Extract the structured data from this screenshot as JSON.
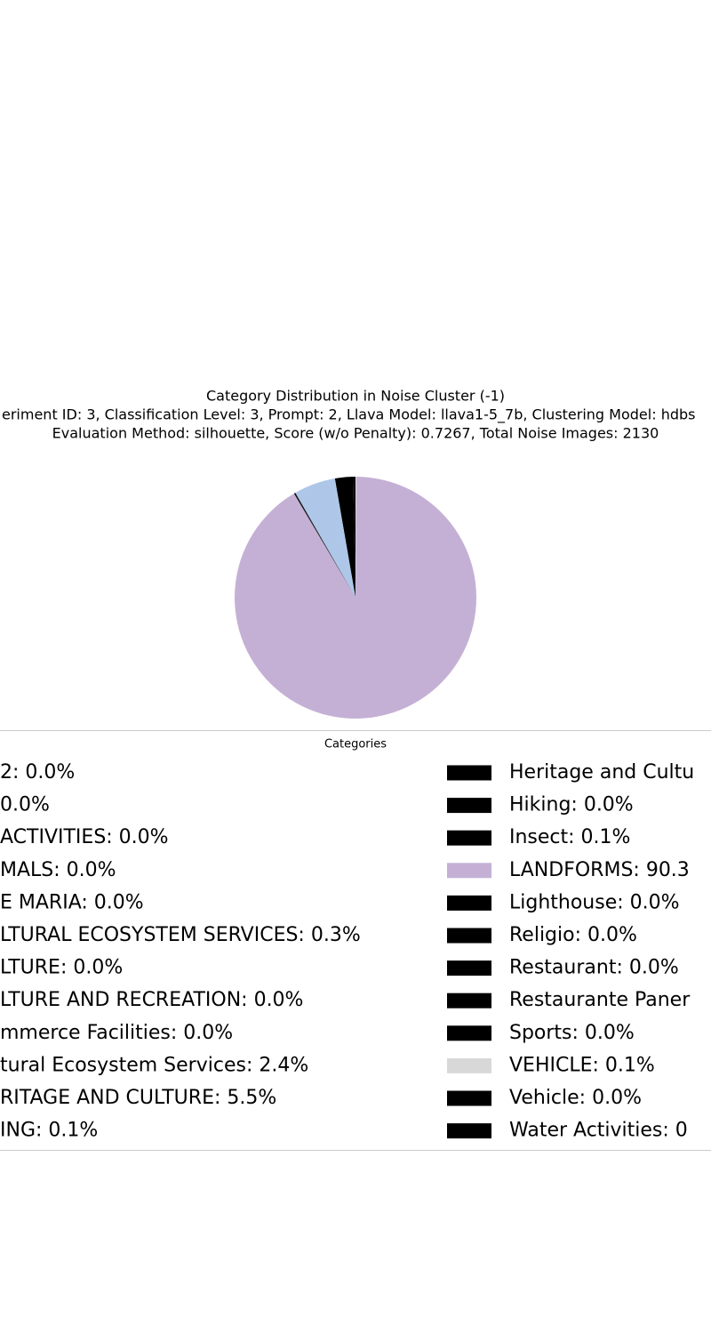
{
  "chart_data": {
    "type": "pie",
    "title": "Category Distribution in Noise Cluster (-1)",
    "subtitle": "eriment ID: 3, Classification Level: 3, Prompt: 2, Llava Model: llava1-5_7b, Clustering Model: hdbs",
    "subtitle2": "Evaluation Method: silhouette, Score (w/o Penalty): 0.7267, Total Noise Images: 2130",
    "legend_title": "Categories",
    "categories": [
      "2: 0.0%",
      "0.0%",
      "ACTIVITIES: 0.0%",
      "MALS: 0.0%",
      "E MARIA: 0.0%",
      "LTURAL ECOSYSTEM SERVICES: 0.3%",
      "LTURE: 0.0%",
      "LTURE AND RECREATION: 0.0%",
      "mmerce Facilities: 0.0%",
      "tural Ecosystem Services: 2.4%",
      "RITAGE AND CULTURE: 5.5%",
      "ING: 0.1%",
      "Heritage and Cultu",
      "Hiking: 0.0%",
      "Insect: 0.1%",
      "LANDFORMS: 90.3",
      "Lighthouse: 0.0%",
      "Religio: 0.0%",
      "Restaurant: 0.0%",
      "Restaurante Paner",
      "Sports: 0.0%",
      "VEHICLE: 0.1%",
      "Vehicle: 0.0%",
      "Water Activities: 0"
    ],
    "values": [
      0.0,
      0.0,
      0.0,
      0.0,
      0.0,
      0.3,
      0.0,
      0.0,
      0.0,
      2.4,
      5.5,
      0.1,
      0.0,
      0.0,
      0.1,
      90.3,
      0.0,
      0.0,
      0.0,
      0.0,
      0.0,
      0.1,
      0.0,
      0.0
    ],
    "colors": [
      "#000000",
      "#000000",
      "#000000",
      "#000000",
      "#000000",
      "#000000",
      "#000000",
      "#000000",
      "#000000",
      "#000000",
      "#aec7e8",
      "#000000",
      "#000000",
      "#000000",
      "#000000",
      "#c5b0d5",
      "#000000",
      "#000000",
      "#000000",
      "#000000",
      "#000000",
      "#d8d8d8",
      "#000000",
      "#000000"
    ],
    "start_angle": 90
  }
}
